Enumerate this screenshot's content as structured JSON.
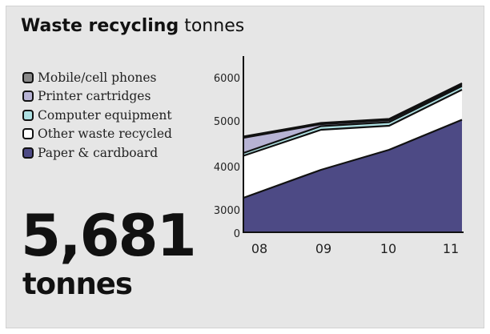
{
  "title": {
    "bold": "Waste recycling",
    "unit": "tonnes"
  },
  "total": {
    "value": "5,681",
    "unit": "tonnes"
  },
  "colors": {
    "mobile": "#888888",
    "printer": "#b7b3d4",
    "computer": "#aee1e3",
    "other": "#ffffff",
    "paper": "#4d4a85",
    "panel_bg": "#e6e6e6",
    "outline": "#111111"
  },
  "legend": [
    {
      "label": "Mobile/cell phones",
      "color": "#888888"
    },
    {
      "label": "Printer cartridges",
      "color": "#b7b3d4"
    },
    {
      "label": "Computer equipment",
      "color": "#aee1e3"
    },
    {
      "label": "Other waste recycled",
      "color": "#ffffff"
    },
    {
      "label": "Paper & cardboard",
      "color": "#4d4a85"
    }
  ],
  "chart_data": {
    "type": "area",
    "stacked": true,
    "categories": [
      "08",
      "09",
      "10",
      "11"
    ],
    "ylim": [
      2500,
      6500
    ],
    "axis_break": true,
    "y_ticks": [
      "0",
      "3000",
      "4000",
      "5000",
      "6000"
    ],
    "series": [
      {
        "name": "Paper & cardboard",
        "color": "#4d4a85",
        "values": [
          2800,
          3500,
          4000,
          4750
        ]
      },
      {
        "name": "Other waste recycled",
        "color": "#ffffff",
        "values": [
          1050,
          1000,
          600,
          750
        ]
      },
      {
        "name": "Computer equipment",
        "color": "#aee1e3",
        "values": [
          70,
          90,
          90,
          90
        ]
      },
      {
        "name": "Printer cartridges",
        "color": "#b7b3d4",
        "values": [
          380,
          50,
          50,
          40
        ]
      },
      {
        "name": "Mobile/cell phones",
        "color": "#888888",
        "values": [
          30,
          30,
          30,
          30
        ]
      }
    ],
    "grid": false,
    "legend_position": "left"
  }
}
